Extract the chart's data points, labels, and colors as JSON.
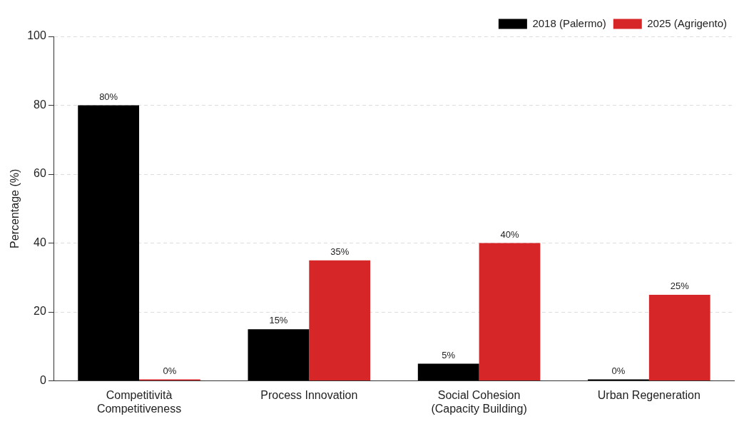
{
  "chart_data": {
    "type": "bar",
    "ylabel": "Percentage (%)",
    "categories": [
      "Competitività\nCompetitiveness",
      "Process Innovation",
      "Social Cohesion\n(Capacity Building)",
      "Urban Regeneration"
    ],
    "series": [
      {
        "name": "2018 (Palermo)",
        "color": "#000000",
        "values": [
          80,
          15,
          5,
          0
        ],
        "value_labels": [
          "80%",
          "15%",
          "5%",
          "0%"
        ]
      },
      {
        "name": "2025 (Agrigento)",
        "color": "#d62628",
        "values": [
          0,
          35,
          40,
          25
        ],
        "value_labels": [
          "0%",
          "35%",
          "40%",
          "25%"
        ]
      }
    ],
    "ylim": [
      0,
      100
    ],
    "yticks": [
      0,
      20,
      40,
      60,
      80,
      100
    ],
    "grid": "y",
    "legend": "top right"
  }
}
